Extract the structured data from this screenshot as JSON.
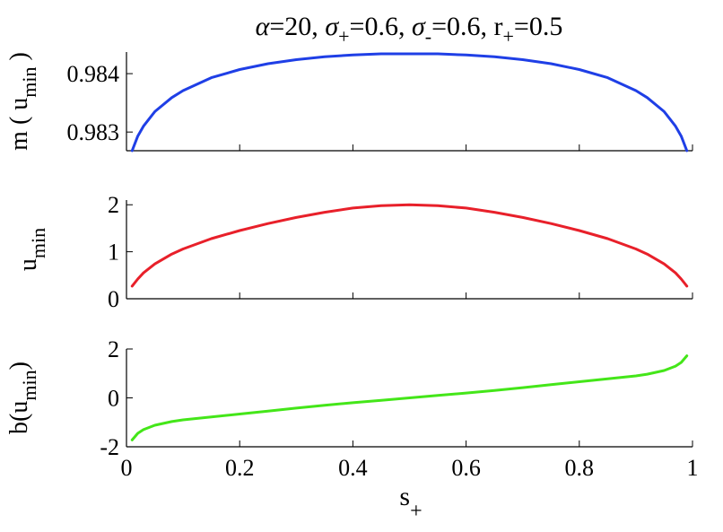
{
  "title_parts": {
    "alpha_sym": "α",
    "alpha_val": "=20, ",
    "sigma_sym_1": "σ",
    "sigma_sub_1": "+",
    "sigma_val_1": "=0.6, ",
    "sigma_sym_2": "σ",
    "sigma_sub_2": "-",
    "sigma_val_2": "=0.6, r",
    "r_sub": "+",
    "r_val": "=0.5"
  },
  "xlabel": {
    "main": "s",
    "sub": "+"
  },
  "colors": {
    "top": "#1f3fe6",
    "middle": "#e8202a",
    "bottom": "#44e619"
  },
  "chart_data": [
    {
      "type": "line",
      "panel": "top",
      "ylabel": {
        "main": "m ( u",
        "sub": "min",
        "suffix": " )"
      },
      "xlim": [
        0,
        1
      ],
      "ylim": [
        0.98268,
        0.98437
      ],
      "x_ticks": [
        0,
        0.2,
        0.4,
        0.6,
        0.8,
        1
      ],
      "y_ticks": [
        0.983,
        0.984
      ],
      "y_tick_labels": [
        "0.983",
        "0.984"
      ],
      "x": [
        0.01,
        0.02,
        0.03,
        0.05,
        0.08,
        0.1,
        0.15,
        0.2,
        0.25,
        0.3,
        0.35,
        0.4,
        0.45,
        0.5,
        0.55,
        0.6,
        0.65,
        0.7,
        0.75,
        0.8,
        0.85,
        0.9,
        0.92,
        0.95,
        0.97,
        0.98,
        0.99
      ],
      "y": [
        0.98268,
        0.98293,
        0.9831,
        0.98335,
        0.98359,
        0.98371,
        0.98393,
        0.98407,
        0.98417,
        0.98424,
        0.98429,
        0.98432,
        0.98434,
        0.98434,
        0.98434,
        0.98432,
        0.98429,
        0.98424,
        0.98417,
        0.98407,
        0.98393,
        0.98371,
        0.98359,
        0.98335,
        0.9831,
        0.98293,
        0.98268
      ]
    },
    {
      "type": "line",
      "panel": "middle",
      "ylabel": {
        "main": "u",
        "sub": "min",
        "suffix": ""
      },
      "xlim": [
        0,
        1
      ],
      "ylim": [
        0,
        2.1
      ],
      "x_ticks": [
        0,
        0.2,
        0.4,
        0.6,
        0.8,
        1
      ],
      "y_ticks": [
        0,
        1,
        2
      ],
      "y_tick_labels": [
        "0",
        "1",
        "2"
      ],
      "x": [
        0.01,
        0.02,
        0.03,
        0.05,
        0.08,
        0.1,
        0.15,
        0.2,
        0.25,
        0.3,
        0.35,
        0.4,
        0.45,
        0.5,
        0.55,
        0.6,
        0.65,
        0.7,
        0.75,
        0.8,
        0.85,
        0.9,
        0.92,
        0.95,
        0.97,
        0.98,
        0.99
      ],
      "y": [
        0.27,
        0.42,
        0.55,
        0.74,
        0.95,
        1.06,
        1.28,
        1.45,
        1.6,
        1.73,
        1.84,
        1.93,
        1.98,
        2.0,
        1.98,
        1.93,
        1.84,
        1.73,
        1.6,
        1.45,
        1.28,
        1.06,
        0.95,
        0.74,
        0.55,
        0.42,
        0.27
      ]
    },
    {
      "type": "line",
      "panel": "bottom",
      "ylabel": {
        "main": "b(u",
        "sub": "min",
        "suffix": ")"
      },
      "xlim": [
        0,
        1
      ],
      "ylim": [
        -2,
        2
      ],
      "x_ticks": [
        0,
        0.2,
        0.4,
        0.6,
        0.8,
        1
      ],
      "x_tick_labels": [
        "0",
        "0.2",
        "0.4",
        "0.6",
        "0.8",
        "1"
      ],
      "y_ticks": [
        -2,
        0,
        2
      ],
      "y_tick_labels": [
        "-2",
        "0",
        "2"
      ],
      "x": [
        0.01,
        0.02,
        0.03,
        0.05,
        0.08,
        0.1,
        0.15,
        0.2,
        0.25,
        0.3,
        0.35,
        0.4,
        0.45,
        0.5,
        0.55,
        0.6,
        0.65,
        0.7,
        0.75,
        0.8,
        0.85,
        0.9,
        0.92,
        0.95,
        0.97,
        0.98,
        0.99
      ],
      "y": [
        -1.72,
        -1.45,
        -1.3,
        -1.12,
        -0.97,
        -0.9,
        -0.78,
        -0.66,
        -0.54,
        -0.42,
        -0.3,
        -0.2,
        -0.1,
        0.0,
        0.1,
        0.2,
        0.3,
        0.42,
        0.54,
        0.66,
        0.78,
        0.9,
        0.97,
        1.12,
        1.3,
        1.45,
        1.72
      ]
    }
  ]
}
